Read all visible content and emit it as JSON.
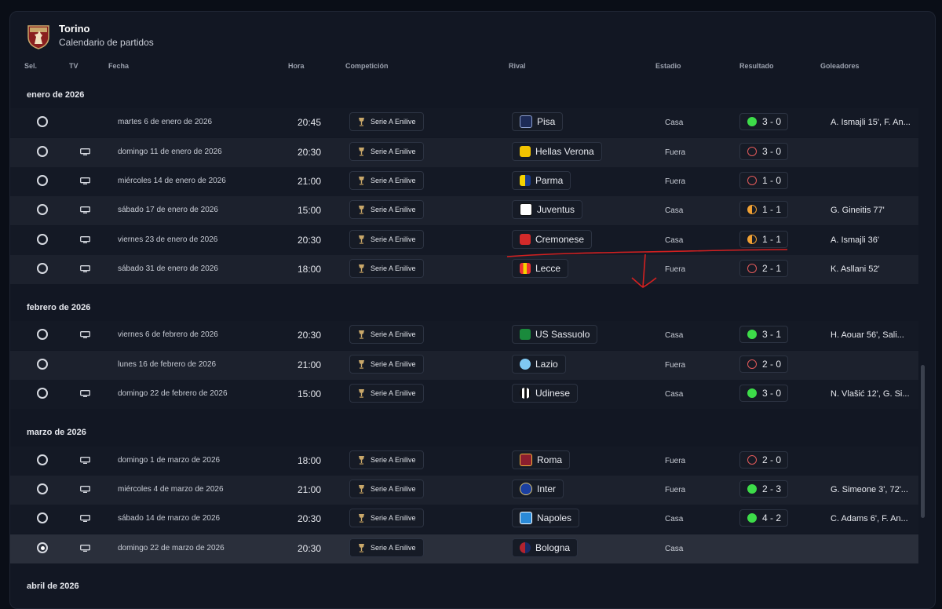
{
  "header": {
    "team": "Torino",
    "subtitle": "Calendario de partidos"
  },
  "columns": {
    "sel": "Sel.",
    "tv": "TV",
    "date": "Fecha",
    "time": "Hora",
    "competition": "Competición",
    "rival": "Rival",
    "venue": "Estadio",
    "result": "Resultado",
    "scorers": "Goleadores"
  },
  "sections": [
    {
      "label": "enero de 2026"
    },
    {
      "label": "febrero de 2026"
    },
    {
      "label": "marzo de 2026"
    },
    {
      "label": "abril de 2026"
    }
  ],
  "matches": [
    {
      "selected": false,
      "tv": false,
      "date": "martes 6 de enero de 2026",
      "time": "20:45",
      "competition": "Serie A Enilive",
      "rival": "Pisa",
      "rival_icon": "pisa-crest-icon",
      "venue": "Casa",
      "outcome": "win",
      "score": "3 - 0",
      "scorers": "A. Ismajli 15', F. An..."
    },
    {
      "selected": false,
      "tv": true,
      "date": "domingo 11 de enero de 2026",
      "time": "20:30",
      "competition": "Serie A Enilive",
      "rival": "Hellas Verona",
      "rival_icon": "verona-crest-icon",
      "venue": "Fuera",
      "outcome": "loss",
      "score": "3 - 0",
      "scorers": ""
    },
    {
      "selected": false,
      "tv": true,
      "date": "miércoles 14 de enero de 2026",
      "time": "21:00",
      "competition": "Serie A Enilive",
      "rival": "Parma",
      "rival_icon": "parma-crest-icon",
      "venue": "Fuera",
      "outcome": "loss",
      "score": "1 - 0",
      "scorers": ""
    },
    {
      "selected": false,
      "tv": true,
      "date": "sábado 17 de enero de 2026",
      "time": "15:00",
      "competition": "Serie A Enilive",
      "rival": "Juventus",
      "rival_icon": "juventus-crest-icon",
      "venue": "Casa",
      "outcome": "draw",
      "score": "1 - 1",
      "scorers": "G. Gineitis 77'"
    },
    {
      "selected": false,
      "tv": true,
      "date": "viernes 23 de enero de 2026",
      "time": "20:30",
      "competition": "Serie A Enilive",
      "rival": "Cremonese",
      "rival_icon": "cremonese-crest-icon",
      "venue": "Casa",
      "outcome": "draw",
      "score": "1 - 1",
      "scorers": "A. Ismajli 36'"
    },
    {
      "selected": false,
      "tv": true,
      "date": "sábado 31 de enero de 2026",
      "time": "18:00",
      "competition": "Serie A Enilive",
      "rival": "Lecce",
      "rival_icon": "lecce-crest-icon",
      "venue": "Fuera",
      "outcome": "loss",
      "score": "2 - 1",
      "scorers": "K. Asllani 52'"
    },
    {
      "selected": false,
      "tv": true,
      "date": "viernes 6 de febrero de 2026",
      "time": "20:30",
      "competition": "Serie A Enilive",
      "rival": "US Sassuolo",
      "rival_icon": "sassuolo-crest-icon",
      "venue": "Casa",
      "outcome": "win",
      "score": "3 - 1",
      "scorers": "H. Aouar 56', Sali..."
    },
    {
      "selected": false,
      "tv": false,
      "date": "lunes 16 de febrero de 2026",
      "time": "21:00",
      "competition": "Serie A Enilive",
      "rival": "Lazio",
      "rival_icon": "lazio-crest-icon",
      "venue": "Fuera",
      "outcome": "loss",
      "score": "2 - 0",
      "scorers": ""
    },
    {
      "selected": false,
      "tv": true,
      "date": "domingo 22 de febrero de 2026",
      "time": "15:00",
      "competition": "Serie A Enilive",
      "rival": "Udinese",
      "rival_icon": "udinese-crest-icon",
      "venue": "Casa",
      "outcome": "win",
      "score": "3 - 0",
      "scorers": "N. Vlašić 12', G. Si..."
    },
    {
      "selected": false,
      "tv": true,
      "date": "domingo 1 de marzo de 2026",
      "time": "18:00",
      "competition": "Serie A Enilive",
      "rival": "Roma",
      "rival_icon": "roma-crest-icon",
      "venue": "Fuera",
      "outcome": "loss",
      "score": "2 - 0",
      "scorers": ""
    },
    {
      "selected": false,
      "tv": true,
      "date": "miércoles 4 de marzo de 2026",
      "time": "21:00",
      "competition": "Serie A Enilive",
      "rival": "Inter",
      "rival_icon": "inter-crest-icon",
      "venue": "Fuera",
      "outcome": "win",
      "score": "2 - 3",
      "scorers": "G. Simeone 3', 72'..."
    },
    {
      "selected": false,
      "tv": true,
      "date": "sábado 14 de marzo de 2026",
      "time": "20:30",
      "competition": "Serie A Enilive",
      "rival": "Napoles",
      "rival_icon": "napoli-crest-icon",
      "venue": "Casa",
      "outcome": "win",
      "score": "4 - 2",
      "scorers": "C. Adams 6', F. An..."
    },
    {
      "selected": true,
      "tv": true,
      "date": "domingo 22 de marzo de 2026",
      "time": "20:30",
      "competition": "Serie A Enilive",
      "rival": "Bologna",
      "rival_icon": "bologna-crest-icon",
      "venue": "Casa",
      "outcome": "",
      "score": "",
      "scorers": ""
    }
  ],
  "colors": {
    "win": "#3ddc49",
    "loss": "#e25a5a",
    "draw": "#f0a033",
    "annotation": "#d42020"
  }
}
